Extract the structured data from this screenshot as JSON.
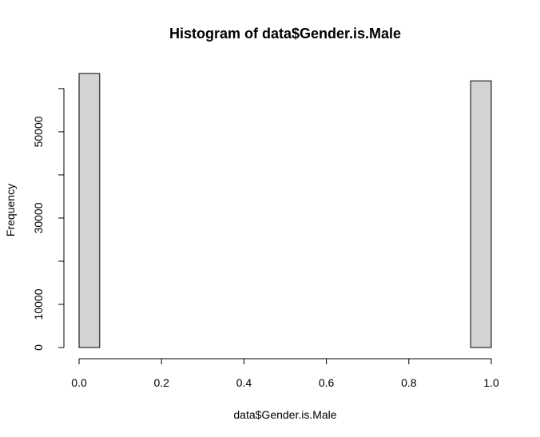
{
  "chart_data": {
    "type": "bar",
    "title": "Histogram of data$Gender.is.Male",
    "xlabel": "data$Gender.is.Male",
    "ylabel": "Frequency",
    "xlim": [
      0,
      1
    ],
    "ylim": [
      0,
      63500
    ],
    "x_ticks": [
      "0.0",
      "0.2",
      "0.4",
      "0.6",
      "0.8",
      "1.0"
    ],
    "y_ticks": [
      "0",
      "10000",
      "30000",
      "50000"
    ],
    "bins": [
      {
        "start": 0.0,
        "end": 0.05,
        "value": 63500
      },
      {
        "start": 0.05,
        "end": 0.1,
        "value": 0
      },
      {
        "start": 0.1,
        "end": 0.15,
        "value": 0
      },
      {
        "start": 0.15,
        "end": 0.2,
        "value": 0
      },
      {
        "start": 0.2,
        "end": 0.25,
        "value": 0
      },
      {
        "start": 0.25,
        "end": 0.3,
        "value": 0
      },
      {
        "start": 0.3,
        "end": 0.35,
        "value": 0
      },
      {
        "start": 0.35,
        "end": 0.4,
        "value": 0
      },
      {
        "start": 0.4,
        "end": 0.45,
        "value": 0
      },
      {
        "start": 0.45,
        "end": 0.5,
        "value": 0
      },
      {
        "start": 0.5,
        "end": 0.55,
        "value": 0
      },
      {
        "start": 0.55,
        "end": 0.6,
        "value": 0
      },
      {
        "start": 0.6,
        "end": 0.65,
        "value": 0
      },
      {
        "start": 0.65,
        "end": 0.7,
        "value": 0
      },
      {
        "start": 0.7,
        "end": 0.75,
        "value": 0
      },
      {
        "start": 0.75,
        "end": 0.8,
        "value": 0
      },
      {
        "start": 0.8,
        "end": 0.85,
        "value": 0
      },
      {
        "start": 0.85,
        "end": 0.9,
        "value": 0
      },
      {
        "start": 0.9,
        "end": 0.95,
        "value": 0
      },
      {
        "start": 0.95,
        "end": 1.0,
        "value": 61800
      }
    ],
    "bar_fill": "#d3d3d3",
    "bar_stroke": "#000000",
    "grid": false,
    "legend": "none"
  }
}
